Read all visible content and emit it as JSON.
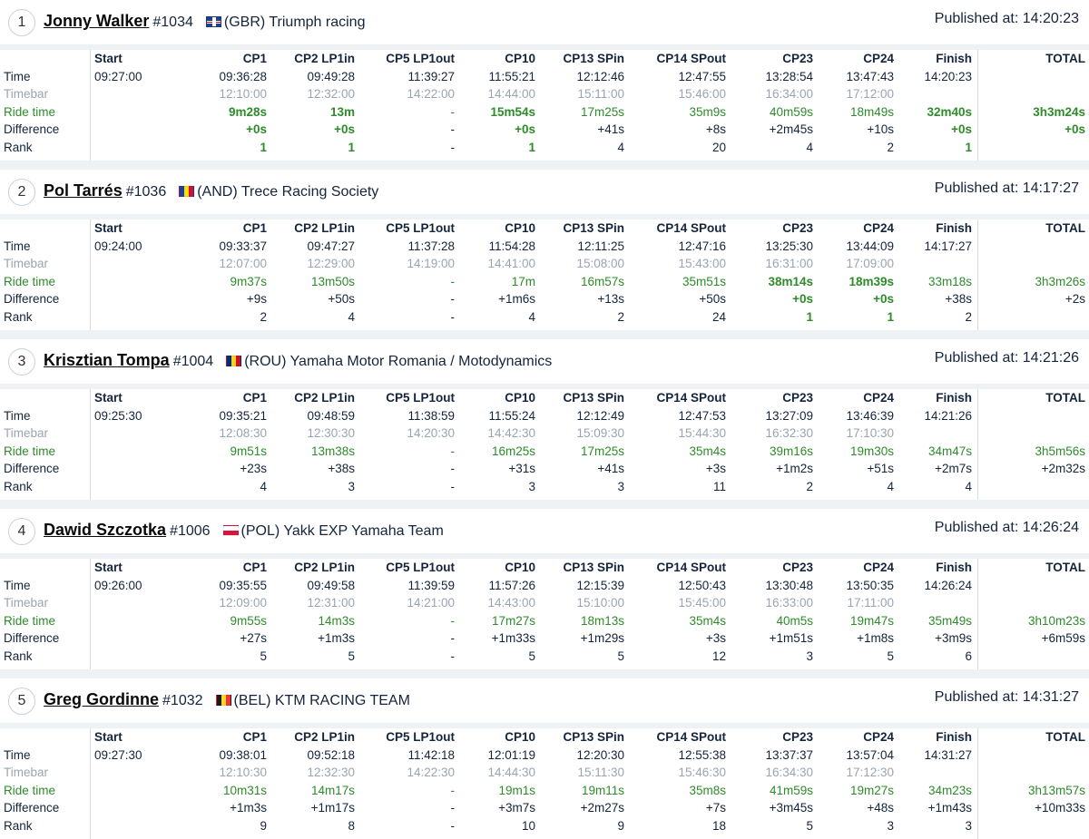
{
  "header_labels": {
    "published_prefix": "Published at: ",
    "row_labels": [
      "Time",
      "Timebar",
      "Ride time",
      "Difference",
      "Rank"
    ]
  },
  "columns": [
    "Start",
    "CP1",
    "CP2 LP1in",
    "CP5 LP1out",
    "CP10",
    "CP13 SPin",
    "CP14 SPout",
    "CP23",
    "CP24",
    "Finish",
    "TOTAL"
  ],
  "colors": {
    "ride_green": "#2e8b2a",
    "timebar_grey": "#9aa4af",
    "text_dark": "#14243a"
  },
  "riders": [
    {
      "position": "1",
      "name": "Jonny Walker",
      "number": "#1034",
      "flag": "GBR-flag",
      "country": "(GBR)",
      "team": "Triumph racing",
      "published": "14:20:23",
      "time": [
        "09:27:00",
        "09:36:28",
        "09:49:28",
        "11:39:27",
        "11:55:21",
        "12:12:46",
        "12:47:55",
        "13:28:54",
        "13:47:43",
        "14:20:23",
        ""
      ],
      "timebar": [
        "",
        "12:10:00",
        "12:32:00",
        "14:22:00",
        "14:44:00",
        "15:11:00",
        "15:46:00",
        "16:34:00",
        "17:12:00",
        "",
        ""
      ],
      "ride": [
        "",
        "9m28s",
        "13m",
        "-",
        "15m54s",
        "17m25s",
        "35m9s",
        "40m59s",
        "18m49s",
        "32m40s",
        "3h3m24s"
      ],
      "ride_best": [
        false,
        true,
        true,
        false,
        true,
        false,
        false,
        false,
        false,
        true,
        true
      ],
      "diff": [
        "",
        "+0s",
        "+0s",
        "-",
        "+0s",
        "+41s",
        "+8s",
        "+2m45s",
        "+10s",
        "+0s",
        "+0s"
      ],
      "diff_best": [
        false,
        true,
        true,
        false,
        true,
        false,
        false,
        false,
        false,
        true,
        true
      ],
      "rank": [
        "",
        "1",
        "1",
        "-",
        "1",
        "4",
        "20",
        "4",
        "2",
        "1",
        ""
      ],
      "rank_best": [
        false,
        true,
        true,
        false,
        true,
        false,
        false,
        false,
        false,
        true,
        false
      ]
    },
    {
      "position": "2",
      "name": "Pol Tarrés",
      "number": "#1036",
      "flag": "AND-flag",
      "country": "(AND)",
      "team": "Trece Racing Society",
      "published": "14:17:27",
      "time": [
        "09:24:00",
        "09:33:37",
        "09:47:27",
        "11:37:28",
        "11:54:28",
        "12:11:25",
        "12:47:16",
        "13:25:30",
        "13:44:09",
        "14:17:27",
        ""
      ],
      "timebar": [
        "",
        "12:07:00",
        "12:29:00",
        "14:19:00",
        "14:41:00",
        "15:08:00",
        "15:43:00",
        "16:31:00",
        "17:09:00",
        "",
        ""
      ],
      "ride": [
        "",
        "9m37s",
        "13m50s",
        "-",
        "17m",
        "16m57s",
        "35m51s",
        "38m14s",
        "18m39s",
        "33m18s",
        "3h3m26s"
      ],
      "ride_best": [
        false,
        false,
        false,
        false,
        false,
        false,
        false,
        true,
        true,
        false,
        false
      ],
      "diff": [
        "",
        "+9s",
        "+50s",
        "-",
        "+1m6s",
        "+13s",
        "+50s",
        "+0s",
        "+0s",
        "+38s",
        "+2s"
      ],
      "diff_best": [
        false,
        false,
        false,
        false,
        false,
        false,
        false,
        true,
        true,
        false,
        false
      ],
      "rank": [
        "",
        "2",
        "4",
        "-",
        "4",
        "2",
        "24",
        "1",
        "1",
        "2",
        ""
      ],
      "rank_best": [
        false,
        false,
        false,
        false,
        false,
        false,
        false,
        true,
        true,
        false,
        false
      ]
    },
    {
      "position": "3",
      "name": "Krisztian Tompa",
      "number": "#1004",
      "flag": "ROU-flag",
      "country": "(ROU)",
      "team": "Yamaha Motor Romania / Motodynamics",
      "published": "14:21:26",
      "time": [
        "09:25:30",
        "09:35:21",
        "09:48:59",
        "11:38:59",
        "11:55:24",
        "12:12:49",
        "12:47:53",
        "13:27:09",
        "13:46:39",
        "14:21:26",
        ""
      ],
      "timebar": [
        "",
        "12:08:30",
        "12:30:30",
        "14:20:30",
        "14:42:30",
        "15:09:30",
        "15:44:30",
        "16:32:30",
        "17:10:30",
        "",
        ""
      ],
      "ride": [
        "",
        "9m51s",
        "13m38s",
        "-",
        "16m25s",
        "17m25s",
        "35m4s",
        "39m16s",
        "19m30s",
        "34m47s",
        "3h5m56s"
      ],
      "ride_best": [
        false,
        false,
        false,
        false,
        false,
        false,
        false,
        false,
        false,
        false,
        false
      ],
      "diff": [
        "",
        "+23s",
        "+38s",
        "-",
        "+31s",
        "+41s",
        "+3s",
        "+1m2s",
        "+51s",
        "+2m7s",
        "+2m32s"
      ],
      "diff_best": [
        false,
        false,
        false,
        false,
        false,
        false,
        false,
        false,
        false,
        false,
        false
      ],
      "rank": [
        "",
        "4",
        "3",
        "-",
        "3",
        "3",
        "11",
        "2",
        "4",
        "4",
        ""
      ],
      "rank_best": [
        false,
        false,
        false,
        false,
        false,
        false,
        false,
        false,
        false,
        false,
        false
      ]
    },
    {
      "position": "4",
      "name": "Dawid Szczotka",
      "number": "#1006",
      "flag": "POL-flag",
      "country": "(POL)",
      "team": "Yakk EXP Yamaha Team",
      "published": "14:26:24",
      "time": [
        "09:26:00",
        "09:35:55",
        "09:49:58",
        "11:39:59",
        "11:57:26",
        "12:15:39",
        "12:50:43",
        "13:30:48",
        "13:50:35",
        "14:26:24",
        ""
      ],
      "timebar": [
        "",
        "12:09:00",
        "12:31:00",
        "14:21:00",
        "14:43:00",
        "15:10:00",
        "15:45:00",
        "16:33:00",
        "17:11:00",
        "",
        ""
      ],
      "ride": [
        "",
        "9m55s",
        "14m3s",
        "-",
        "17m27s",
        "18m13s",
        "35m4s",
        "40m5s",
        "19m47s",
        "35m49s",
        "3h10m23s"
      ],
      "ride_best": [
        false,
        false,
        false,
        false,
        false,
        false,
        false,
        false,
        false,
        false,
        false
      ],
      "diff": [
        "",
        "+27s",
        "+1m3s",
        "-",
        "+1m33s",
        "+1m29s",
        "+3s",
        "+1m51s",
        "+1m8s",
        "+3m9s",
        "+6m59s"
      ],
      "diff_best": [
        false,
        false,
        false,
        false,
        false,
        false,
        false,
        false,
        false,
        false,
        false
      ],
      "rank": [
        "",
        "5",
        "5",
        "-",
        "5",
        "5",
        "12",
        "3",
        "5",
        "6",
        ""
      ],
      "rank_best": [
        false,
        false,
        false,
        false,
        false,
        false,
        false,
        false,
        false,
        false,
        false
      ]
    },
    {
      "position": "5",
      "name": "Greg Gordinne",
      "number": "#1032",
      "flag": "BEL-flag",
      "country": "(BEL)",
      "team": "KTM RACING TEAM",
      "published": "14:31:27",
      "time": [
        "09:27:30",
        "09:38:01",
        "09:52:18",
        "11:42:18",
        "12:01:19",
        "12:20:30",
        "12:55:38",
        "13:37:37",
        "13:57:04",
        "14:31:27",
        ""
      ],
      "timebar": [
        "",
        "12:10:30",
        "12:32:30",
        "14:22:30",
        "14:44:30",
        "15:11:30",
        "15:46:30",
        "16:34:30",
        "17:12:30",
        "",
        ""
      ],
      "ride": [
        "",
        "10m31s",
        "14m17s",
        "-",
        "19m1s",
        "19m11s",
        "35m8s",
        "41m59s",
        "19m27s",
        "34m23s",
        "3h13m57s"
      ],
      "ride_best": [
        false,
        false,
        false,
        false,
        false,
        false,
        false,
        false,
        false,
        false,
        false
      ],
      "diff": [
        "",
        "+1m3s",
        "+1m17s",
        "-",
        "+3m7s",
        "+2m27s",
        "+7s",
        "+3m45s",
        "+48s",
        "+1m43s",
        "+10m33s"
      ],
      "diff_best": [
        false,
        false,
        false,
        false,
        false,
        false,
        false,
        false,
        false,
        false,
        false
      ],
      "rank": [
        "",
        "9",
        "8",
        "-",
        "10",
        "9",
        "18",
        "5",
        "3",
        "3",
        ""
      ],
      "rank_best": [
        false,
        false,
        false,
        false,
        false,
        false,
        false,
        false,
        false,
        false,
        false
      ]
    }
  ]
}
